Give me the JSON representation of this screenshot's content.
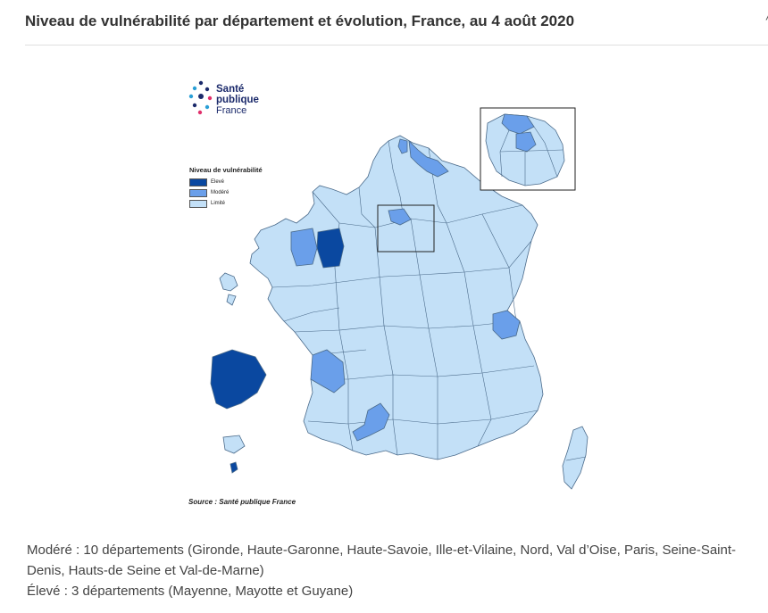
{
  "header": {
    "title": "Niveau de vulnérabilité par département et évolution, France, au 4 août 2020",
    "caret": "^"
  },
  "logo": {
    "line1": "Santé",
    "line2": "publique",
    "line3": "France"
  },
  "legend": {
    "title": "Niveau de vulnérabilité",
    "items": [
      {
        "label": "Elevé",
        "color": "#0a48a0"
      },
      {
        "label": "Modéré",
        "color": "#6a9fea"
      },
      {
        "label": "Limité",
        "color": "#c3e0f7"
      }
    ]
  },
  "colors": {
    "eleve": "#0a48a0",
    "modere": "#6a9fea",
    "limite": "#c3e0f7",
    "border": "#4a6a8a"
  },
  "source": "Source : Santé publique France",
  "notes": {
    "modere": "Modéré : 10 départements (Gironde, Haute-Garonne, Haute-Savoie, Ille-et-Vilaine, Nord, Val d’Oise, Paris, Seine-Saint-Denis, Hauts-de Seine et Val-de-Marne)",
    "eleve": "Élevé : 3 départements (Mayenne, Mayotte et Guyane)"
  }
}
